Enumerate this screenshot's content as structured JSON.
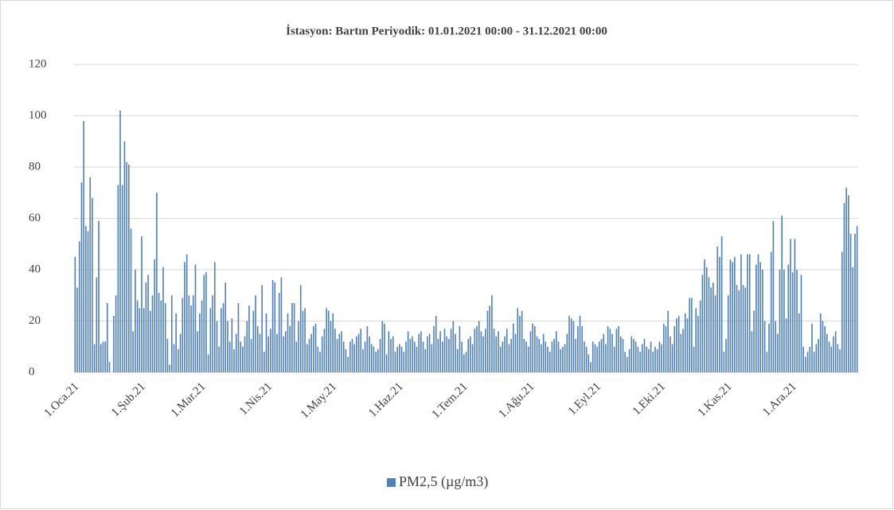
{
  "chart_data": {
    "type": "bar",
    "title": "İstasyon: Bartın Periyodik: 01.01.2021 00:00 - 31.12.2021 00:00",
    "categories": [
      "1.Oca.21",
      null,
      null,
      null,
      null,
      null,
      null,
      null,
      null,
      null,
      null,
      null,
      null,
      null,
      null,
      null,
      null,
      null,
      null,
      null,
      null,
      null,
      null,
      null,
      null,
      null,
      null,
      null,
      null,
      null,
      null,
      "1.Şub.21",
      null,
      null,
      null,
      null,
      null,
      null,
      null,
      null,
      null,
      null,
      null,
      null,
      null,
      null,
      null,
      null,
      null,
      null,
      null,
      null,
      null,
      null,
      null,
      null,
      null,
      null,
      null,
      "1.Mar.21",
      null,
      null,
      null,
      null,
      null,
      null,
      null,
      null,
      null,
      null,
      null,
      null,
      null,
      null,
      null,
      null,
      null,
      null,
      null,
      null,
      null,
      null,
      null,
      null,
      null,
      null,
      null,
      null,
      null,
      null,
      "1.Nis.21",
      null,
      null,
      null,
      null,
      null,
      null,
      null,
      null,
      null,
      null,
      null,
      null,
      null,
      null,
      null,
      null,
      null,
      null,
      null,
      null,
      null,
      null,
      null,
      null,
      null,
      null,
      null,
      null,
      null,
      "1.May.21",
      null,
      null,
      null,
      null,
      null,
      null,
      null,
      null,
      null,
      null,
      null,
      null,
      null,
      null,
      null,
      null,
      null,
      null,
      null,
      null,
      null,
      null,
      null,
      null,
      null,
      null,
      null,
      null,
      null,
      null,
      "1.Haz.21",
      null,
      null,
      null,
      null,
      null,
      null,
      null,
      null,
      null,
      null,
      null,
      null,
      null,
      null,
      null,
      null,
      null,
      null,
      null,
      null,
      null,
      null,
      null,
      null,
      null,
      null,
      null,
      null,
      null,
      "1.Tem.21",
      null,
      null,
      null,
      null,
      null,
      null,
      null,
      null,
      null,
      null,
      null,
      null,
      null,
      null,
      null,
      null,
      null,
      null,
      null,
      null,
      null,
      null,
      null,
      null,
      null,
      null,
      null,
      null,
      null,
      null,
      "1.Ağu.21",
      null,
      null,
      null,
      null,
      null,
      null,
      null,
      null,
      null,
      null,
      null,
      null,
      null,
      null,
      null,
      null,
      null,
      null,
      null,
      null,
      null,
      null,
      null,
      null,
      null,
      null,
      null,
      null,
      null,
      null,
      "1.Eyl.21",
      null,
      null,
      null,
      null,
      null,
      null,
      null,
      null,
      null,
      null,
      null,
      null,
      null,
      null,
      null,
      null,
      null,
      null,
      null,
      null,
      null,
      null,
      null,
      null,
      null,
      null,
      null,
      null,
      null,
      "1.Eki.21",
      null,
      null,
      null,
      null,
      null,
      null,
      null,
      null,
      null,
      null,
      null,
      null,
      null,
      null,
      null,
      null,
      null,
      null,
      null,
      null,
      null,
      null,
      null,
      null,
      null,
      null,
      null,
      null,
      null,
      null,
      "1.Kas.21",
      null,
      null,
      null,
      null,
      null,
      null,
      null,
      null,
      null,
      null,
      null,
      null,
      null,
      null,
      null,
      null,
      null,
      null,
      null,
      null,
      null,
      null,
      null,
      null,
      null,
      null,
      null,
      null,
      null,
      "1.Ara.21",
      null,
      null,
      null,
      null,
      null,
      null,
      null,
      null,
      null,
      null,
      null,
      null,
      null,
      null,
      null,
      null,
      null,
      null,
      null,
      null,
      null,
      null,
      null,
      null,
      null,
      null,
      null,
      null,
      null,
      null
    ],
    "series": [
      {
        "name": "PM2,5 (µg/m3)",
        "color": "#4f81bd",
        "values": [
          45,
          33,
          51,
          74,
          98,
          57,
          55,
          76,
          68,
          11,
          37,
          59,
          11,
          12,
          12,
          27,
          4,
          0,
          22,
          30,
          73,
          102,
          73,
          90,
          82,
          81,
          56,
          16,
          40,
          28,
          25,
          53,
          25,
          35,
          38,
          24,
          30,
          44,
          70,
          31,
          28,
          41,
          27,
          13,
          3,
          30,
          11,
          23,
          9,
          15,
          29,
          43,
          46,
          30,
          26,
          30,
          42,
          16,
          23,
          28,
          38,
          39,
          7,
          25,
          30,
          43,
          20,
          10,
          25,
          27,
          35,
          20,
          12,
          21,
          9,
          15,
          27,
          12,
          10,
          14,
          20,
          26,
          13,
          24,
          30,
          18,
          15,
          34,
          8,
          23,
          14,
          17,
          36,
          35,
          15,
          31,
          37,
          14,
          16,
          23,
          18,
          27,
          27,
          12,
          20,
          34,
          24,
          25,
          11,
          13,
          15,
          18,
          19,
          10,
          8,
          14,
          17,
          25,
          24,
          20,
          23,
          17,
          13,
          15,
          16,
          12,
          9,
          6,
          12,
          13,
          11,
          14,
          15,
          17,
          9,
          12,
          18,
          14,
          11,
          10,
          8,
          9,
          13,
          20,
          19,
          7,
          16,
          13,
          14,
          8,
          10,
          11,
          10,
          8,
          12,
          16,
          13,
          14,
          12,
          10,
          15,
          16,
          12,
          9,
          14,
          15,
          11,
          18,
          22,
          13,
          16,
          12,
          17,
          14,
          13,
          17,
          20,
          15,
          9,
          18,
          12,
          7,
          8,
          13,
          14,
          11,
          17,
          18,
          20,
          16,
          14,
          17,
          24,
          26,
          30,
          17,
          14,
          16,
          10,
          12,
          14,
          17,
          11,
          13,
          19,
          15,
          25,
          22,
          24,
          13,
          12,
          10,
          16,
          19,
          18,
          14,
          13,
          11,
          15,
          12,
          10,
          8,
          12,
          13,
          16,
          12,
          9,
          10,
          11,
          15,
          22,
          21,
          20,
          13,
          18,
          22,
          18,
          12,
          10,
          7,
          4,
          12,
          11,
          10,
          12,
          13,
          15,
          11,
          18,
          17,
          15,
          10,
          17,
          18,
          14,
          13,
          8,
          6,
          9,
          14,
          13,
          12,
          10,
          8,
          11,
          13,
          10,
          9,
          12,
          8,
          10,
          9,
          12,
          11,
          19,
          18,
          24,
          14,
          11,
          18,
          21,
          22,
          15,
          17,
          23,
          21,
          29,
          29,
          10,
          25,
          22,
          28,
          38,
          44,
          41,
          37,
          33,
          35,
          30,
          49,
          45,
          53,
          8,
          13,
          30,
          44,
          43,
          45,
          34,
          32,
          46,
          34,
          33,
          46,
          46,
          16,
          24,
          42,
          46,
          43,
          40,
          20,
          8,
          19,
          47,
          59,
          20,
          15,
          40,
          61,
          40,
          21,
          42,
          52,
          39,
          52,
          40,
          23,
          38,
          10,
          6,
          8,
          10,
          19,
          8,
          11,
          13,
          23,
          20,
          18,
          15,
          12,
          10,
          14,
          16,
          11,
          9,
          47,
          66,
          72,
          69,
          54,
          41,
          54,
          57
        ]
      }
    ],
    "ylim": [
      0,
      120
    ],
    "yticks": [
      0,
      20,
      40,
      60,
      80,
      100,
      120
    ],
    "grid": true,
    "legend": "bottom"
  }
}
